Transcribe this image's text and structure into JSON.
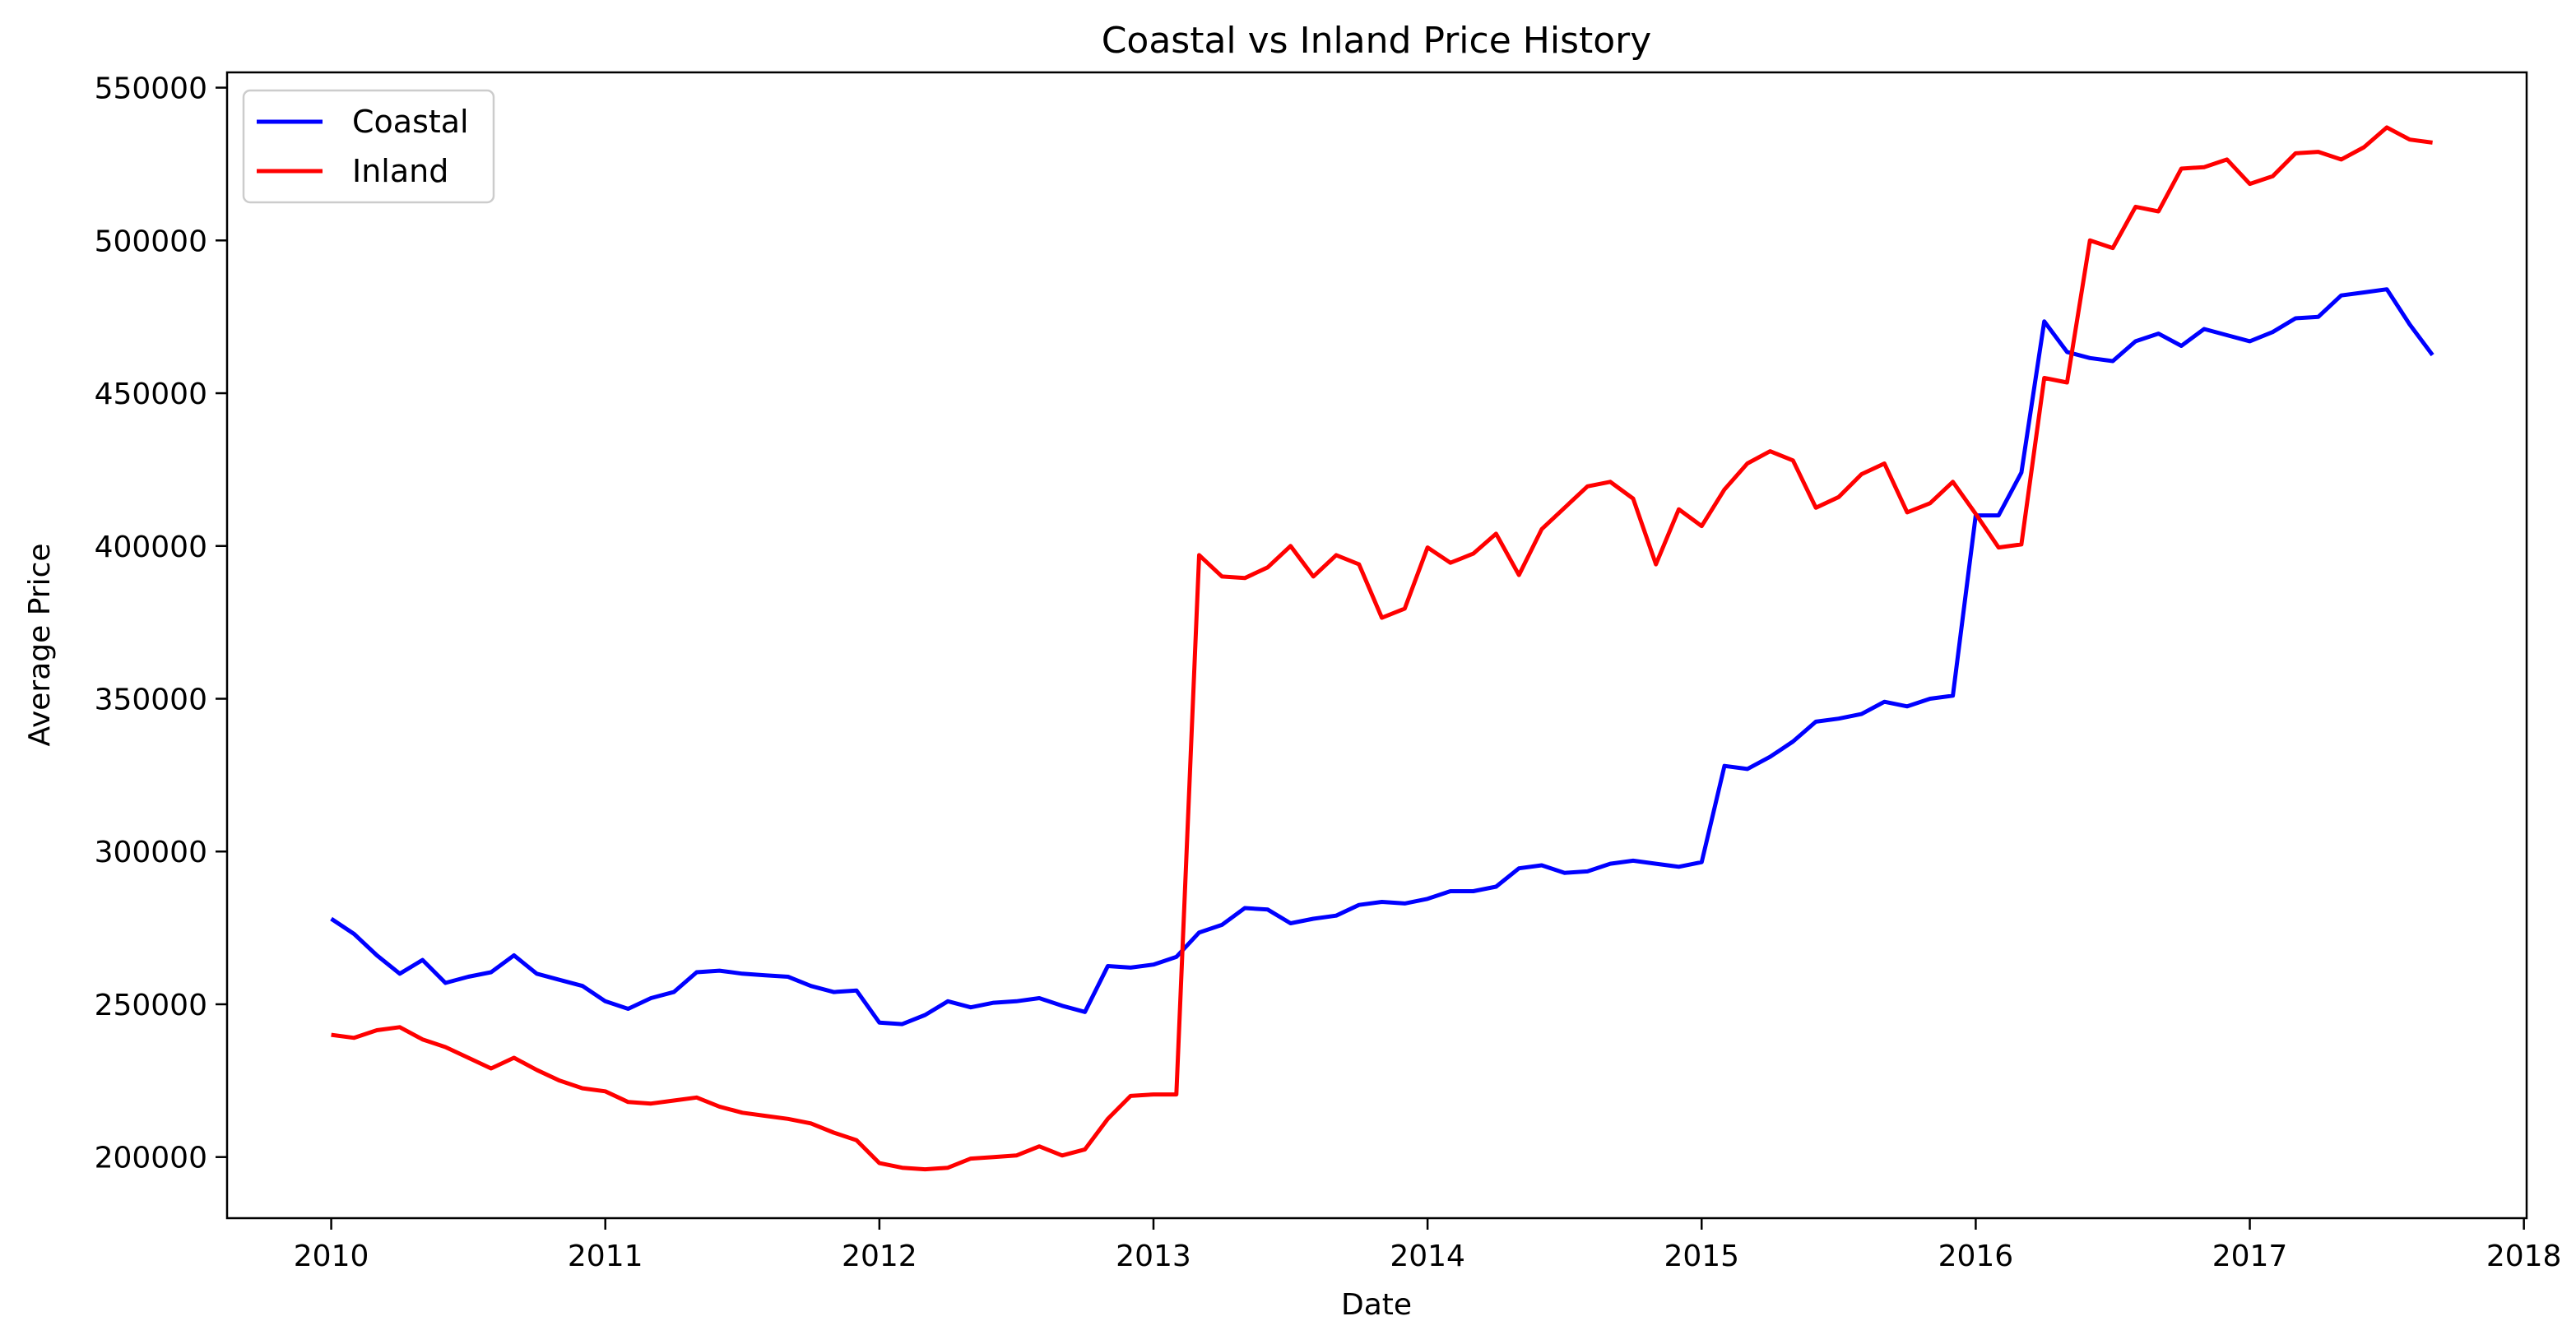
{
  "chart_data": {
    "type": "line",
    "title": "Coastal vs Inland Price History",
    "xlabel": "Date",
    "ylabel": "Average Price",
    "x_start": "2010-01",
    "x_step": "month",
    "xlim": [
      2009.62,
      2018.01
    ],
    "ylim": [
      180000,
      555000
    ],
    "x_ticks": [
      2010,
      2011,
      2012,
      2013,
      2014,
      2015,
      2016,
      2017,
      2018
    ],
    "x_tick_labels": [
      "2010",
      "2011",
      "2012",
      "2013",
      "2014",
      "2015",
      "2016",
      "2017",
      "2018"
    ],
    "y_ticks": [
      200000,
      250000,
      300000,
      350000,
      400000,
      450000,
      500000,
      550000
    ],
    "y_tick_labels": [
      "200000",
      "250000",
      "300000",
      "350000",
      "400000",
      "450000",
      "500000",
      "550000"
    ],
    "grid": false,
    "legend_position": "top-left",
    "series": [
      {
        "name": "Coastal",
        "color": "#0000ff",
        "values": [
          278000,
          273000,
          266000,
          260000,
          264500,
          257000,
          259000,
          260500,
          266000,
          260000,
          258000,
          256000,
          251000,
          248500,
          252000,
          254000,
          260500,
          261000,
          260000,
          259500,
          259000,
          256000,
          254000,
          254500,
          244000,
          243500,
          246500,
          251000,
          249000,
          250500,
          251000,
          252000,
          249500,
          247500,
          262500,
          262000,
          263000,
          265500,
          273500,
          276000,
          281500,
          281000,
          276500,
          278000,
          279000,
          282500,
          283500,
          283000,
          284500,
          287000,
          287000,
          288500,
          294500,
          295500,
          293000,
          293500,
          296000,
          297000,
          296000,
          295000,
          296500,
          328000,
          327000,
          331000,
          336000,
          342500,
          343500,
          345000,
          349000,
          347500,
          350000,
          351000,
          410000,
          410000,
          424000,
          473500,
          463500,
          461500,
          460500,
          467000,
          469500,
          465500,
          471000,
          469000,
          467000,
          470000,
          474500,
          475000,
          482000,
          483000,
          484000,
          472500,
          462500
        ]
      },
      {
        "name": "Inland",
        "color": "#ff0000",
        "values": [
          240000,
          239000,
          241500,
          242500,
          238500,
          236000,
          232500,
          229000,
          232500,
          228500,
          225000,
          222500,
          221500,
          218000,
          217500,
          218500,
          219500,
          216500,
          214500,
          213500,
          212500,
          211000,
          208000,
          205500,
          198000,
          196500,
          196000,
          196500,
          199500,
          200000,
          200500,
          203500,
          200500,
          202500,
          212500,
          220000,
          220500,
          220500,
          397000,
          390000,
          389500,
          393000,
          400000,
          390000,
          397000,
          394000,
          376500,
          379500,
          399500,
          394500,
          397500,
          404000,
          390500,
          405500,
          412500,
          419500,
          421000,
          415500,
          394000,
          412000,
          406500,
          418500,
          427000,
          431000,
          428000,
          412500,
          416000,
          423500,
          427000,
          411000,
          414000,
          421000,
          410500,
          399500,
          400500,
          455000,
          453500,
          500000,
          497500,
          511000,
          509500,
          523500,
          524000,
          526500,
          518500,
          521000,
          528500,
          529000,
          526500,
          530500,
          537000,
          533000,
          532000
        ]
      }
    ]
  }
}
